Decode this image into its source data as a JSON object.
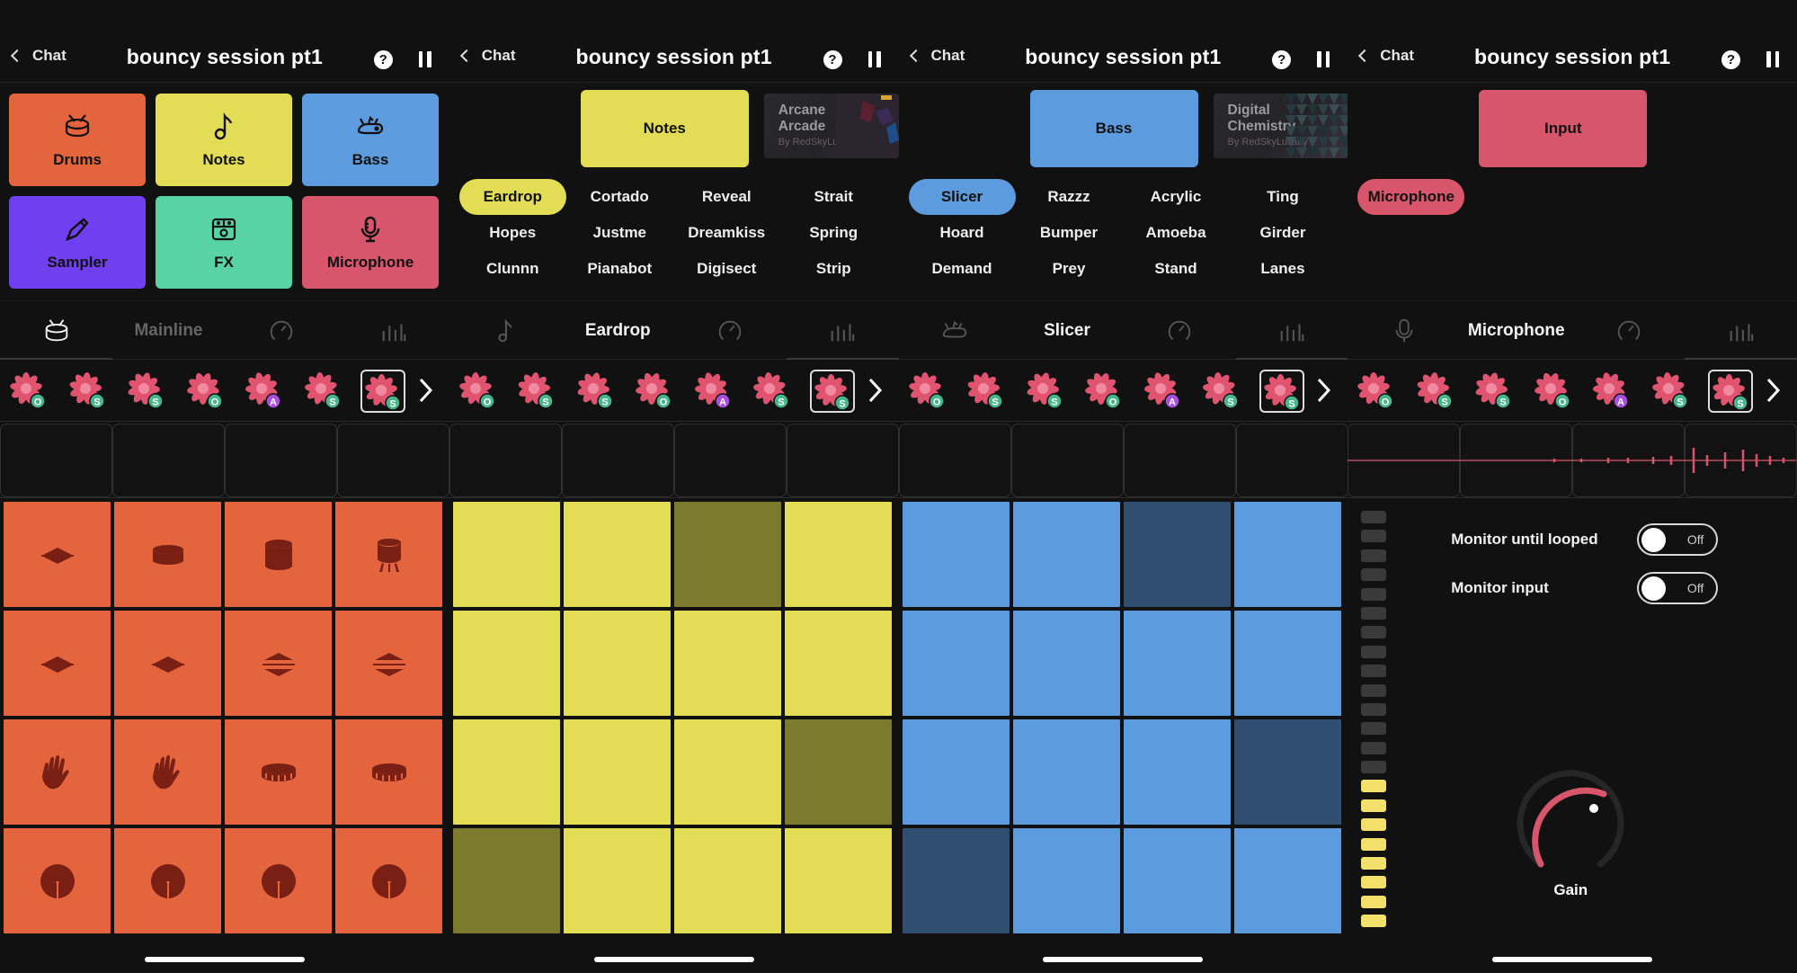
{
  "header": {
    "back_label": "Chat",
    "session_title": "bouncy session pt1",
    "help_glyph": "?"
  },
  "colors": {
    "drums": "#e4643e",
    "notes": "#e2dd55",
    "notes_dim": "#7b7a2d",
    "bass": "#5d9bdf",
    "bass_dim": "#2f4e70",
    "sampler": "#6f3ff0",
    "fx": "#58d3a6",
    "microphone": "#d8566c",
    "pattern_pink": "#e0546f",
    "badge_green": "#49b58c",
    "badge_purple": "#a94fe0"
  },
  "panel1": {
    "instruments": [
      {
        "label": "Drums",
        "icon": "drum-icon",
        "color": "#e4643e"
      },
      {
        "label": "Notes",
        "icon": "note-icon",
        "color": "#e2dd55"
      },
      {
        "label": "Bass",
        "icon": "bass-icon",
        "color": "#5d9bdf"
      },
      {
        "label": "Sampler",
        "icon": "pen-icon",
        "color": "#6f3ff0"
      },
      {
        "label": "FX",
        "icon": "fx-icon",
        "color": "#58d3a6"
      },
      {
        "label": "Microphone",
        "icon": "microphone-icon",
        "color": "#d8566c"
      }
    ],
    "mode_tab_label": "Mainline",
    "pads_rows": [
      [
        "pad-spread-icon",
        "drum-side-icon",
        "drum-tall-icon",
        "drum-kick-icon"
      ],
      [
        "pad-spread-icon",
        "pad-spread-icon",
        "pad-spread-out-icon",
        "pad-spread-out-icon"
      ],
      [
        "hand-clap-icon",
        "hand-clap-icon",
        "snare-icon",
        "snare-icon"
      ],
      [
        "cymbal-icon",
        "cymbal-icon",
        "cymbal-icon",
        "cymbal-icon"
      ]
    ]
  },
  "panel2": {
    "instrument_label": "Notes",
    "pack": {
      "name": "Arcane Arcade",
      "by": "By RedSkyLullaby"
    },
    "sounds": [
      "Eardrop",
      "Cortado",
      "Reveal",
      "Strait",
      "Hopes",
      "Justme",
      "Dreamkiss",
      "Spring",
      "Clunnn",
      "Pianabot",
      "Digisect",
      "Strip"
    ],
    "selected_sound": "Eardrop",
    "mode_tab_label": "Eardrop",
    "pad_states": [
      [
        1,
        1,
        0,
        1
      ],
      [
        1,
        1,
        1,
        1
      ],
      [
        1,
        1,
        1,
        0
      ],
      [
        0,
        1,
        1,
        1
      ]
    ]
  },
  "panel3": {
    "instrument_label": "Bass",
    "pack": {
      "name": "Digital Chemistry",
      "by": "By RedSkyLullaby"
    },
    "sounds": [
      "Slicer",
      "Razzz",
      "Acrylic",
      "Ting",
      "Hoard",
      "Bumper",
      "Amoeba",
      "Girder",
      "Demand",
      "Prey",
      "Stand",
      "Lanes"
    ],
    "selected_sound": "Slicer",
    "mode_tab_label": "Slicer",
    "pad_states": [
      [
        1,
        1,
        0,
        1
      ],
      [
        1,
        1,
        1,
        1
      ],
      [
        1,
        1,
        1,
        0
      ],
      [
        0,
        1,
        1,
        1
      ]
    ]
  },
  "panel4": {
    "instrument_label": "Input",
    "sounds": [
      "Microphone"
    ],
    "selected_sound": "Microphone",
    "mode_tab_label": "Microphone",
    "monitor_until_looped": {
      "label": "Monitor until looped",
      "state": "Off"
    },
    "monitor_input": {
      "label": "Monitor input",
      "state": "Off"
    },
    "gain_label": "Gain",
    "meter_levels_lit": 8,
    "meter_total": 22
  },
  "patterns": {
    "badges": [
      "O",
      "S",
      "S",
      "O",
      "A",
      "S",
      "S"
    ],
    "selected_index": 6
  }
}
